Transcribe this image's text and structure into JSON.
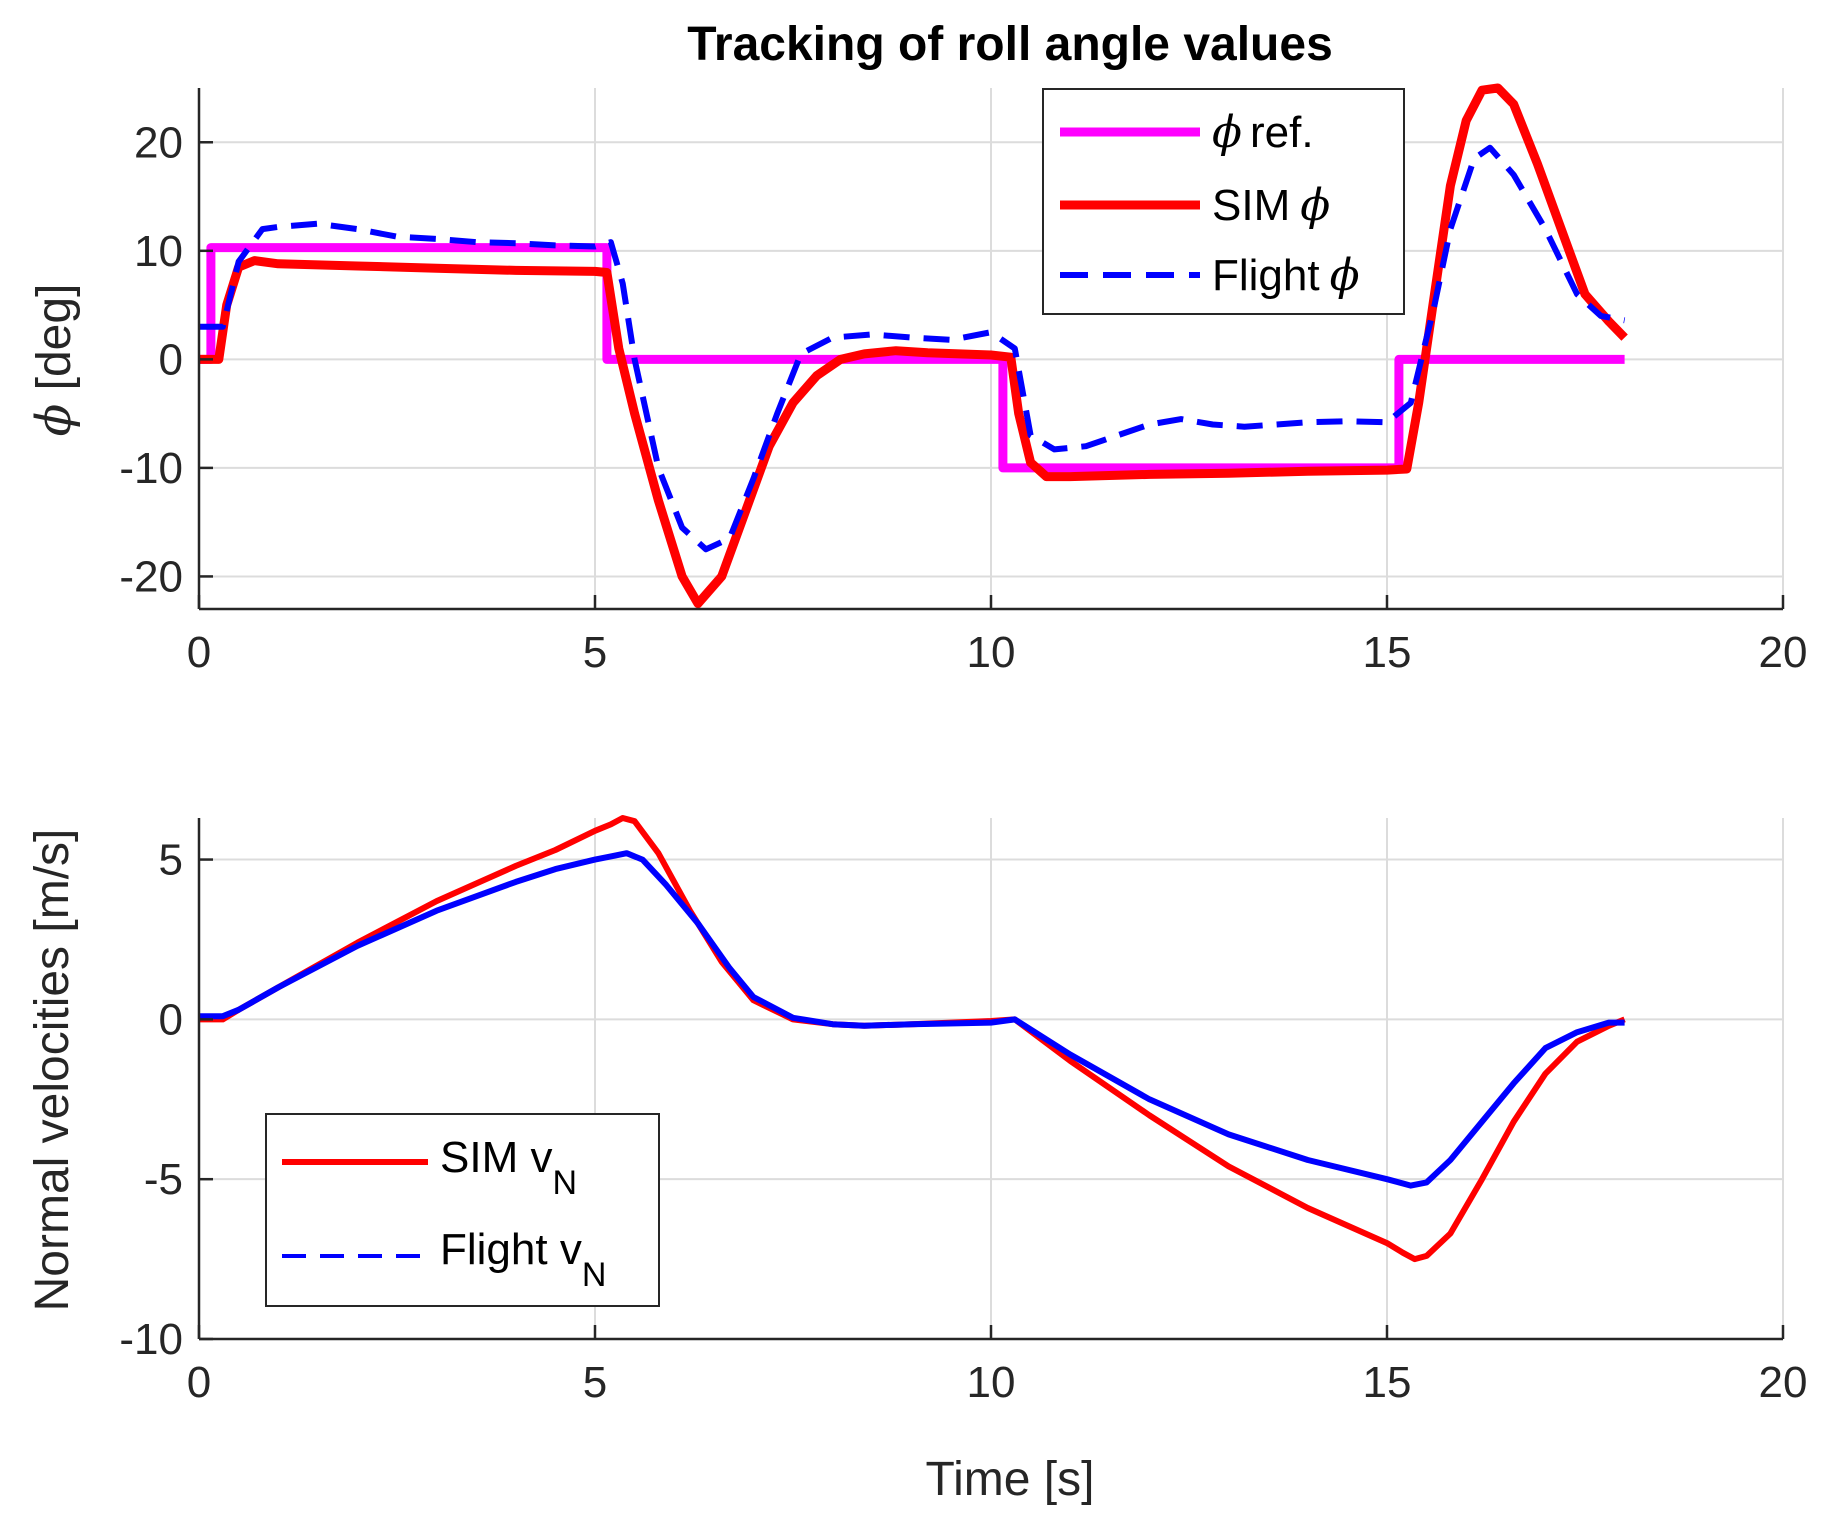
{
  "chart_data": [
    {
      "type": "line",
      "title": "Tracking of roll angle values",
      "xlabel": "",
      "ylabel": "ϕ [deg]",
      "xlim": [
        0,
        20
      ],
      "ylim": [
        -23,
        25
      ],
      "xticks": [
        0,
        5,
        10,
        15,
        20
      ],
      "yticks": [
        -20,
        -10,
        0,
        10,
        20
      ],
      "xtick_labels": [
        "0",
        "5",
        "10",
        "15",
        "20"
      ],
      "ytick_labels": [
        "-20",
        "-10",
        "0",
        "10",
        "20"
      ],
      "grid": true,
      "legend_position": "top-right",
      "series": [
        {
          "name": "ϕ ref.",
          "legend_text": "ref.",
          "color": "#ff00ff",
          "style": "solid",
          "x": [
            0,
            0.15,
            0.15,
            5.15,
            5.15,
            10.15,
            10.15,
            15.15,
            15.15,
            18
          ],
          "values": [
            0,
            0,
            10.3,
            10.3,
            0,
            0,
            -10,
            -10,
            0,
            0
          ]
        },
        {
          "name": "SIM ϕ",
          "legend_text": "SIM",
          "color": "#ff0000",
          "style": "solid",
          "x": [
            0,
            0.25,
            0.35,
            0.5,
            0.7,
            1,
            2,
            3,
            4,
            5,
            5.15,
            5.3,
            5.5,
            5.8,
            6.1,
            6.3,
            6.6,
            6.9,
            7.2,
            7.5,
            7.8,
            8.1,
            8.4,
            8.8,
            9.2,
            9.6,
            10,
            10.25,
            10.35,
            10.5,
            10.7,
            11,
            12,
            13,
            14,
            15,
            15.25,
            15.4,
            15.6,
            15.8,
            16,
            16.2,
            16.4,
            16.6,
            16.9,
            17.2,
            17.5,
            17.8,
            18
          ],
          "values": [
            0,
            0,
            5,
            8.5,
            9.1,
            8.8,
            8.6,
            8.4,
            8.2,
            8.1,
            8,
            1,
            -5,
            -13,
            -20,
            -22.5,
            -20,
            -14,
            -8,
            -4,
            -1.5,
            0,
            0.5,
            0.8,
            0.6,
            0.5,
            0.4,
            0.2,
            -5,
            -9.5,
            -10.8,
            -10.8,
            -10.6,
            -10.5,
            -10.3,
            -10.2,
            -10.1,
            -4,
            6,
            16,
            22,
            24.8,
            25,
            23.5,
            18,
            12,
            6,
            3.5,
            2
          ]
        },
        {
          "name": "Flight ϕ",
          "legend_text": "Flight",
          "color": "#0000ff",
          "style": "dashed",
          "x": [
            0,
            0.3,
            0.5,
            0.8,
            1,
            1.5,
            2,
            2.5,
            3,
            3.5,
            4,
            4.5,
            5,
            5.2,
            5.35,
            5.5,
            5.8,
            6.1,
            6.4,
            6.7,
            7,
            7.3,
            7.6,
            8,
            8.5,
            9,
            9.5,
            10,
            10.3,
            10.5,
            10.8,
            11.2,
            11.6,
            12,
            12.4,
            12.8,
            13.2,
            13.6,
            14,
            14.5,
            15,
            15.3,
            15.6,
            15.8,
            16.1,
            16.3,
            16.6,
            17,
            17.4,
            17.7,
            18
          ],
          "values": [
            3,
            3,
            9,
            12,
            12.2,
            12.5,
            12,
            11.3,
            11.1,
            10.8,
            10.7,
            10.5,
            10.4,
            10.8,
            7,
            0,
            -10,
            -15.5,
            -17.5,
            -16.5,
            -11,
            -5,
            0.5,
            2,
            2.3,
            2,
            1.8,
            2.5,
            1,
            -7,
            -8.3,
            -8,
            -7,
            -6,
            -5.5,
            -6,
            -6.2,
            -6,
            -5.8,
            -5.7,
            -5.8,
            -4,
            5,
            12,
            18.5,
            19.5,
            17,
            12,
            6,
            4,
            3.6
          ]
        }
      ]
    },
    {
      "type": "line",
      "title": "",
      "xlabel": "Time [s]",
      "ylabel": "Normal velocities [m/s]",
      "xlim": [
        0,
        20
      ],
      "ylim": [
        -10,
        6.3
      ],
      "xticks": [
        0,
        5,
        10,
        15,
        20
      ],
      "yticks": [
        -10,
        -5,
        0,
        5
      ],
      "xtick_labels": [
        "0",
        "5",
        "10",
        "15",
        "20"
      ],
      "ytick_labels": [
        "-10",
        "-5",
        "0",
        "5"
      ],
      "grid": true,
      "legend_position": "bottom-left",
      "series": [
        {
          "name": "SIM vN",
          "legend_text": "SIM v",
          "legend_sub": "N",
          "color": "#ff0000",
          "style": "solid",
          "x": [
            0,
            0.3,
            0.5,
            1,
            2,
            3,
            4,
            4.5,
            5,
            5.2,
            5.35,
            5.5,
            5.8,
            6.2,
            6.6,
            7,
            7.5,
            8,
            8.4,
            9,
            10,
            10.3,
            11,
            12,
            13,
            14,
            15,
            15.2,
            15.35,
            15.5,
            15.8,
            16.2,
            16.6,
            17,
            17.4,
            17.8,
            18
          ],
          "values": [
            0,
            0,
            0.3,
            1,
            2.4,
            3.7,
            4.8,
            5.3,
            5.9,
            6.1,
            6.3,
            6.2,
            5.2,
            3.4,
            1.8,
            0.6,
            0,
            -0.15,
            -0.2,
            -0.15,
            -0.05,
            0,
            -1.3,
            -3,
            -4.6,
            -5.9,
            -7,
            -7.3,
            -7.5,
            -7.4,
            -6.7,
            -5,
            -3.2,
            -1.7,
            -0.7,
            -0.2,
            0
          ]
        },
        {
          "name": "Flight vN",
          "legend_text": "Flight v",
          "legend_sub": "N",
          "color": "#0000ff",
          "style": "dashed",
          "x": [
            0,
            0.3,
            0.5,
            1,
            2,
            3,
            4,
            4.5,
            5,
            5.2,
            5.4,
            5.6,
            5.9,
            6.3,
            6.7,
            7,
            7.5,
            8,
            8.4,
            9,
            10,
            10.3,
            11,
            12,
            13,
            14,
            15,
            15.3,
            15.5,
            15.8,
            16.2,
            16.6,
            17,
            17.4,
            17.8,
            18
          ],
          "values": [
            0.1,
            0.1,
            0.3,
            1,
            2.3,
            3.4,
            4.3,
            4.7,
            5,
            5.1,
            5.2,
            5,
            4.2,
            3,
            1.6,
            0.7,
            0.05,
            -0.15,
            -0.2,
            -0.15,
            -0.1,
            0,
            -1.1,
            -2.5,
            -3.6,
            -4.4,
            -5,
            -5.2,
            -5.1,
            -4.4,
            -3.2,
            -2,
            -0.9,
            -0.4,
            -0.1,
            -0.1
          ]
        }
      ]
    }
  ]
}
